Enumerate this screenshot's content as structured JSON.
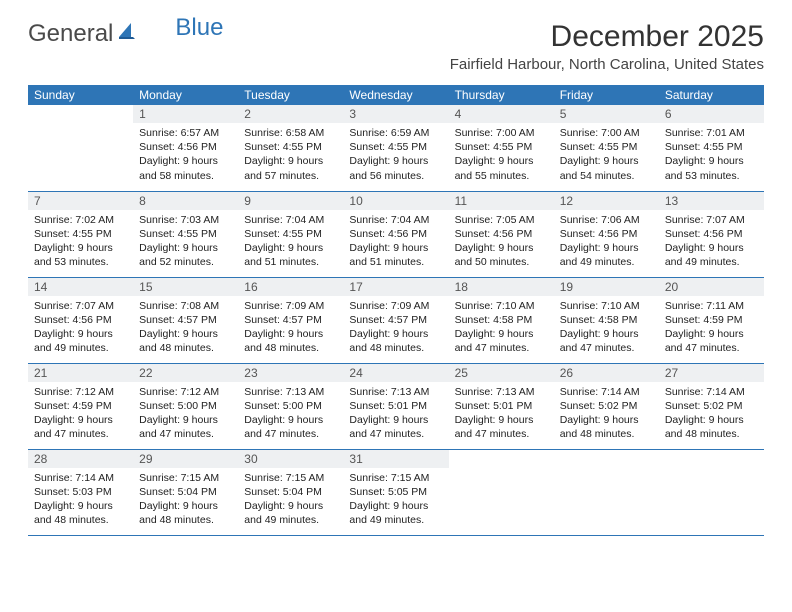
{
  "logo": {
    "part1": "General",
    "part2": "Blue"
  },
  "title": "December 2025",
  "location": "Fairfield Harbour, North Carolina, United States",
  "colors": {
    "header_bg": "#2e75b6",
    "header_text": "#ffffff",
    "daynum_bg": "#eef0f2",
    "border": "#2e75b6",
    "logo_gray": "#4a4a4a",
    "logo_blue": "#2e75b6"
  },
  "weekdays": [
    "Sunday",
    "Monday",
    "Tuesday",
    "Wednesday",
    "Thursday",
    "Friday",
    "Saturday"
  ],
  "weeks": [
    [
      {
        "n": "",
        "lines": []
      },
      {
        "n": "1",
        "lines": [
          "Sunrise: 6:57 AM",
          "Sunset: 4:56 PM",
          "Daylight: 9 hours",
          "and 58 minutes."
        ]
      },
      {
        "n": "2",
        "lines": [
          "Sunrise: 6:58 AM",
          "Sunset: 4:55 PM",
          "Daylight: 9 hours",
          "and 57 minutes."
        ]
      },
      {
        "n": "3",
        "lines": [
          "Sunrise: 6:59 AM",
          "Sunset: 4:55 PM",
          "Daylight: 9 hours",
          "and 56 minutes."
        ]
      },
      {
        "n": "4",
        "lines": [
          "Sunrise: 7:00 AM",
          "Sunset: 4:55 PM",
          "Daylight: 9 hours",
          "and 55 minutes."
        ]
      },
      {
        "n": "5",
        "lines": [
          "Sunrise: 7:00 AM",
          "Sunset: 4:55 PM",
          "Daylight: 9 hours",
          "and 54 minutes."
        ]
      },
      {
        "n": "6",
        "lines": [
          "Sunrise: 7:01 AM",
          "Sunset: 4:55 PM",
          "Daylight: 9 hours",
          "and 53 minutes."
        ]
      }
    ],
    [
      {
        "n": "7",
        "lines": [
          "Sunrise: 7:02 AM",
          "Sunset: 4:55 PM",
          "Daylight: 9 hours",
          "and 53 minutes."
        ]
      },
      {
        "n": "8",
        "lines": [
          "Sunrise: 7:03 AM",
          "Sunset: 4:55 PM",
          "Daylight: 9 hours",
          "and 52 minutes."
        ]
      },
      {
        "n": "9",
        "lines": [
          "Sunrise: 7:04 AM",
          "Sunset: 4:55 PM",
          "Daylight: 9 hours",
          "and 51 minutes."
        ]
      },
      {
        "n": "10",
        "lines": [
          "Sunrise: 7:04 AM",
          "Sunset: 4:56 PM",
          "Daylight: 9 hours",
          "and 51 minutes."
        ]
      },
      {
        "n": "11",
        "lines": [
          "Sunrise: 7:05 AM",
          "Sunset: 4:56 PM",
          "Daylight: 9 hours",
          "and 50 minutes."
        ]
      },
      {
        "n": "12",
        "lines": [
          "Sunrise: 7:06 AM",
          "Sunset: 4:56 PM",
          "Daylight: 9 hours",
          "and 49 minutes."
        ]
      },
      {
        "n": "13",
        "lines": [
          "Sunrise: 7:07 AM",
          "Sunset: 4:56 PM",
          "Daylight: 9 hours",
          "and 49 minutes."
        ]
      }
    ],
    [
      {
        "n": "14",
        "lines": [
          "Sunrise: 7:07 AM",
          "Sunset: 4:56 PM",
          "Daylight: 9 hours",
          "and 49 minutes."
        ]
      },
      {
        "n": "15",
        "lines": [
          "Sunrise: 7:08 AM",
          "Sunset: 4:57 PM",
          "Daylight: 9 hours",
          "and 48 minutes."
        ]
      },
      {
        "n": "16",
        "lines": [
          "Sunrise: 7:09 AM",
          "Sunset: 4:57 PM",
          "Daylight: 9 hours",
          "and 48 minutes."
        ]
      },
      {
        "n": "17",
        "lines": [
          "Sunrise: 7:09 AM",
          "Sunset: 4:57 PM",
          "Daylight: 9 hours",
          "and 48 minutes."
        ]
      },
      {
        "n": "18",
        "lines": [
          "Sunrise: 7:10 AM",
          "Sunset: 4:58 PM",
          "Daylight: 9 hours",
          "and 47 minutes."
        ]
      },
      {
        "n": "19",
        "lines": [
          "Sunrise: 7:10 AM",
          "Sunset: 4:58 PM",
          "Daylight: 9 hours",
          "and 47 minutes."
        ]
      },
      {
        "n": "20",
        "lines": [
          "Sunrise: 7:11 AM",
          "Sunset: 4:59 PM",
          "Daylight: 9 hours",
          "and 47 minutes."
        ]
      }
    ],
    [
      {
        "n": "21",
        "lines": [
          "Sunrise: 7:12 AM",
          "Sunset: 4:59 PM",
          "Daylight: 9 hours",
          "and 47 minutes."
        ]
      },
      {
        "n": "22",
        "lines": [
          "Sunrise: 7:12 AM",
          "Sunset: 5:00 PM",
          "Daylight: 9 hours",
          "and 47 minutes."
        ]
      },
      {
        "n": "23",
        "lines": [
          "Sunrise: 7:13 AM",
          "Sunset: 5:00 PM",
          "Daylight: 9 hours",
          "and 47 minutes."
        ]
      },
      {
        "n": "24",
        "lines": [
          "Sunrise: 7:13 AM",
          "Sunset: 5:01 PM",
          "Daylight: 9 hours",
          "and 47 minutes."
        ]
      },
      {
        "n": "25",
        "lines": [
          "Sunrise: 7:13 AM",
          "Sunset: 5:01 PM",
          "Daylight: 9 hours",
          "and 47 minutes."
        ]
      },
      {
        "n": "26",
        "lines": [
          "Sunrise: 7:14 AM",
          "Sunset: 5:02 PM",
          "Daylight: 9 hours",
          "and 48 minutes."
        ]
      },
      {
        "n": "27",
        "lines": [
          "Sunrise: 7:14 AM",
          "Sunset: 5:02 PM",
          "Daylight: 9 hours",
          "and 48 minutes."
        ]
      }
    ],
    [
      {
        "n": "28",
        "lines": [
          "Sunrise: 7:14 AM",
          "Sunset: 5:03 PM",
          "Daylight: 9 hours",
          "and 48 minutes."
        ]
      },
      {
        "n": "29",
        "lines": [
          "Sunrise: 7:15 AM",
          "Sunset: 5:04 PM",
          "Daylight: 9 hours",
          "and 48 minutes."
        ]
      },
      {
        "n": "30",
        "lines": [
          "Sunrise: 7:15 AM",
          "Sunset: 5:04 PM",
          "Daylight: 9 hours",
          "and 49 minutes."
        ]
      },
      {
        "n": "31",
        "lines": [
          "Sunrise: 7:15 AM",
          "Sunset: 5:05 PM",
          "Daylight: 9 hours",
          "and 49 minutes."
        ]
      },
      {
        "n": "",
        "lines": []
      },
      {
        "n": "",
        "lines": []
      },
      {
        "n": "",
        "lines": []
      }
    ]
  ]
}
